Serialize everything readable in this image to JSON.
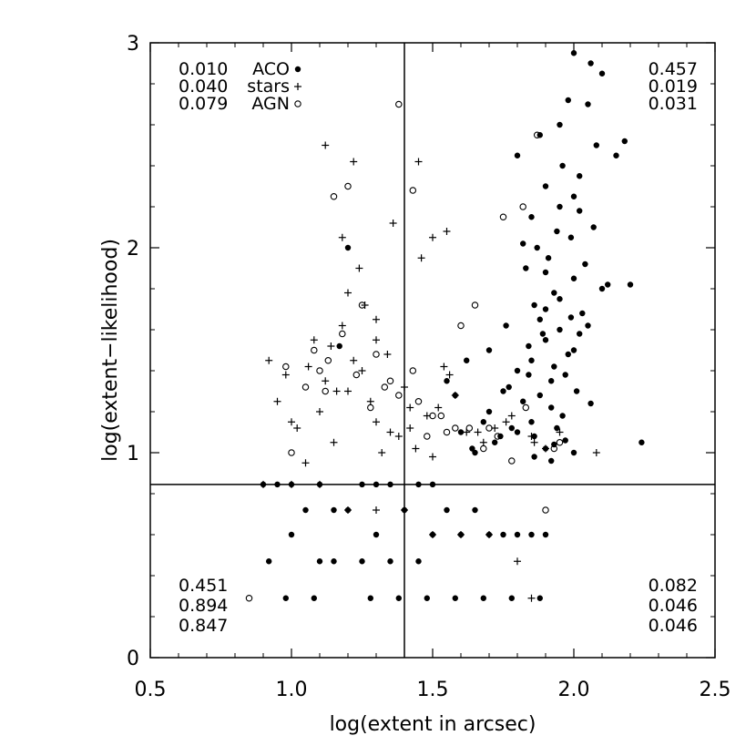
{
  "chart_data": {
    "type": "scatter",
    "title": "",
    "xlabel": "log(extent in arcsec)",
    "ylabel": "log(extent−likelihood)",
    "xlim": [
      0.5,
      2.5
    ],
    "ylim": [
      0,
      3
    ],
    "xticks": [
      "0.5",
      "1.0",
      "1.5",
      "2.0",
      "2.5"
    ],
    "yticks": [
      "0",
      "1",
      "2",
      "3"
    ],
    "xtick_values": [
      0.5,
      1.0,
      1.5,
      2.0,
      2.5
    ],
    "ytick_values": [
      0,
      1,
      2,
      3
    ],
    "x_cut": 1.4,
    "y_cut": 0.845,
    "legend": [
      {
        "fraction": "0.010",
        "name": "ACO",
        "symbol": "filled-circle"
      },
      {
        "fraction": "0.040",
        "name": "stars",
        "symbol": "plus"
      },
      {
        "fraction": "0.079",
        "name": "AGN",
        "symbol": "open-circle"
      }
    ],
    "quadrant_fractions": {
      "upper_right": [
        "0.457",
        "0.019",
        "0.031"
      ],
      "lower_left": [
        "0.451",
        "0.894",
        "0.847"
      ],
      "lower_right": [
        "0.082",
        "0.046",
        "0.046"
      ]
    },
    "series": [
      {
        "name": "ACO",
        "symbol": "filled-circle",
        "x": [
          1.9,
          1.85,
          1.95,
          2.0,
          1.8,
          1.92,
          1.88,
          1.98,
          2.02,
          1.75,
          1.82,
          1.9,
          1.95,
          2.05,
          1.7,
          1.85,
          1.93,
          1.97,
          2.1,
          2.0,
          1.78,
          1.88,
          1.92,
          1.96,
          2.03,
          1.83,
          1.87,
          1.91,
          1.99,
          2.07,
          1.72,
          1.8,
          1.86,
          1.94,
          2.01,
          1.65,
          1.77,
          1.84,
          1.89,
          1.95,
          2.04,
          2.12,
          1.9,
          1.96,
          2.0,
          2.08,
          1.85,
          1.93,
          2.02,
          2.15,
          1.95,
          2.05,
          2.1,
          2.18,
          1.98,
          2.06,
          2.0,
          1.88,
          1.8,
          1.7,
          1.62,
          1.55,
          1.9,
          1.93,
          1.97,
          2.0,
          1.84,
          1.76,
          1.68,
          2.2,
          2.24,
          2.06,
          1.92,
          1.86,
          1.74,
          1.64,
          1.58,
          1.86,
          1.94,
          2.02,
          1.82,
          1.9,
          1.99,
          1.2,
          1.17,
          1.6,
          1.45,
          1.5,
          1.3,
          1.35,
          1.25,
          1.1,
          1.0,
          0.95,
          0.9,
          1.15,
          1.05,
          1.4,
          1.55,
          1.65,
          1.7,
          1.8,
          1.85,
          1.9,
          1.2,
          1.3,
          1.5,
          1.6,
          1.75,
          1.0,
          1.1,
          1.35,
          1.45,
          1.25,
          1.15,
          0.92,
          0.98,
          1.08,
          1.28,
          1.38,
          1.48,
          1.58,
          1.68,
          1.78,
          1.88
        ],
        "y": [
          1.55,
          1.45,
          1.6,
          1.5,
          1.4,
          1.35,
          1.65,
          1.48,
          1.58,
          1.3,
          1.25,
          1.7,
          1.75,
          1.62,
          1.2,
          1.15,
          1.42,
          1.38,
          1.8,
          1.85,
          1.12,
          1.28,
          1.22,
          1.18,
          1.68,
          1.9,
          2.0,
          1.95,
          2.05,
          2.1,
          1.05,
          1.1,
          1.08,
          1.12,
          1.3,
          1.0,
          1.32,
          1.52,
          1.58,
          2.2,
          1.92,
          1.82,
          2.3,
          2.4,
          2.25,
          2.5,
          2.15,
          1.78,
          2.35,
          2.45,
          2.6,
          2.7,
          2.85,
          2.52,
          2.72,
          2.9,
          2.95,
          2.55,
          2.45,
          1.5,
          1.45,
          1.35,
          1.02,
          1.04,
          1.06,
          1.0,
          1.38,
          1.62,
          1.15,
          1.82,
          1.05,
          1.24,
          0.96,
          0.98,
          1.08,
          1.02,
          1.28,
          1.72,
          2.08,
          2.18,
          2.02,
          1.88,
          1.66,
          2.0,
          1.52,
          1.1,
          0.845,
          0.845,
          0.845,
          0.845,
          0.845,
          0.845,
          0.845,
          0.845,
          0.845,
          0.72,
          0.72,
          0.72,
          0.72,
          0.72,
          0.6,
          0.6,
          0.6,
          0.6,
          0.72,
          0.6,
          0.6,
          0.6,
          0.6,
          0.6,
          0.47,
          0.47,
          0.47,
          0.47,
          0.47,
          0.47,
          0.29,
          0.29,
          0.29,
          0.29,
          0.29,
          0.29,
          0.29,
          0.29,
          0.29
        ]
      },
      {
        "name": "stars",
        "symbol": "plus",
        "x": [
          1.1,
          1.2,
          1.25,
          1.3,
          1.35,
          1.15,
          1.28,
          1.32,
          1.05,
          1.12,
          1.22,
          1.38,
          1.42,
          1.48,
          1.52,
          1.58,
          1.45,
          1.55,
          1.0,
          0.95,
          1.08,
          1.18,
          1.26,
          1.34,
          1.4,
          1.44,
          1.5,
          1.56,
          1.62,
          1.68,
          1.72,
          1.78,
          1.85,
          1.9,
          1.95,
          2.08,
          1.12,
          1.22,
          1.18,
          1.3,
          1.5,
          1.46,
          1.2,
          1.36,
          1.24,
          1.14,
          1.06,
          0.98,
          0.92,
          1.02,
          1.16,
          1.3,
          1.42,
          1.54,
          1.66,
          1.76,
          1.86,
          0.9,
          1.0,
          1.1,
          1.2,
          1.3,
          1.4,
          1.5,
          1.6,
          1.7,
          1.8,
          1.85
        ],
        "y": [
          1.2,
          1.3,
          1.4,
          1.15,
          1.1,
          1.05,
          1.25,
          1.0,
          0.95,
          1.35,
          1.45,
          1.08,
          1.12,
          1.18,
          1.22,
          1.28,
          2.42,
          2.08,
          1.15,
          1.25,
          1.55,
          1.62,
          1.72,
          1.48,
          1.32,
          1.02,
          0.98,
          1.38,
          1.1,
          1.05,
          1.12,
          1.18,
          1.08,
          1.02,
          1.1,
          1.0,
          2.5,
          2.42,
          2.05,
          1.65,
          2.05,
          1.95,
          1.78,
          2.12,
          1.9,
          1.52,
          1.42,
          1.38,
          1.45,
          1.12,
          1.3,
          1.55,
          1.22,
          1.42,
          1.1,
          1.15,
          1.05,
          0.845,
          0.845,
          0.845,
          0.72,
          0.72,
          0.72,
          0.6,
          0.6,
          0.6,
          0.47,
          0.29
        ]
      },
      {
        "name": "AGN",
        "symbol": "open-circle",
        "x": [
          1.38,
          1.43,
          1.15,
          1.2,
          1.1,
          1.05,
          0.98,
          1.12,
          1.25,
          1.3,
          1.35,
          1.45,
          1.5,
          1.55,
          1.6,
          1.65,
          1.7,
          1.75,
          1.82,
          1.87,
          1.95,
          1.13,
          1.23,
          1.33,
          1.43,
          1.53,
          1.63,
          1.73,
          1.83,
          1.93,
          0.85,
          1.0,
          1.08,
          1.18,
          1.28,
          1.38,
          1.48,
          1.58,
          1.68,
          1.78,
          1.9
        ],
        "y": [
          2.7,
          2.28,
          2.25,
          2.3,
          1.4,
          1.32,
          1.42,
          1.3,
          1.72,
          1.48,
          1.35,
          1.25,
          1.18,
          1.1,
          1.62,
          1.72,
          1.12,
          2.15,
          2.2,
          2.55,
          1.05,
          1.45,
          1.38,
          1.32,
          1.4,
          1.18,
          1.12,
          1.08,
          1.22,
          1.02,
          0.29,
          1.0,
          1.5,
          1.58,
          1.22,
          1.28,
          1.08,
          1.12,
          1.02,
          0.96,
          0.72
        ]
      }
    ]
  }
}
